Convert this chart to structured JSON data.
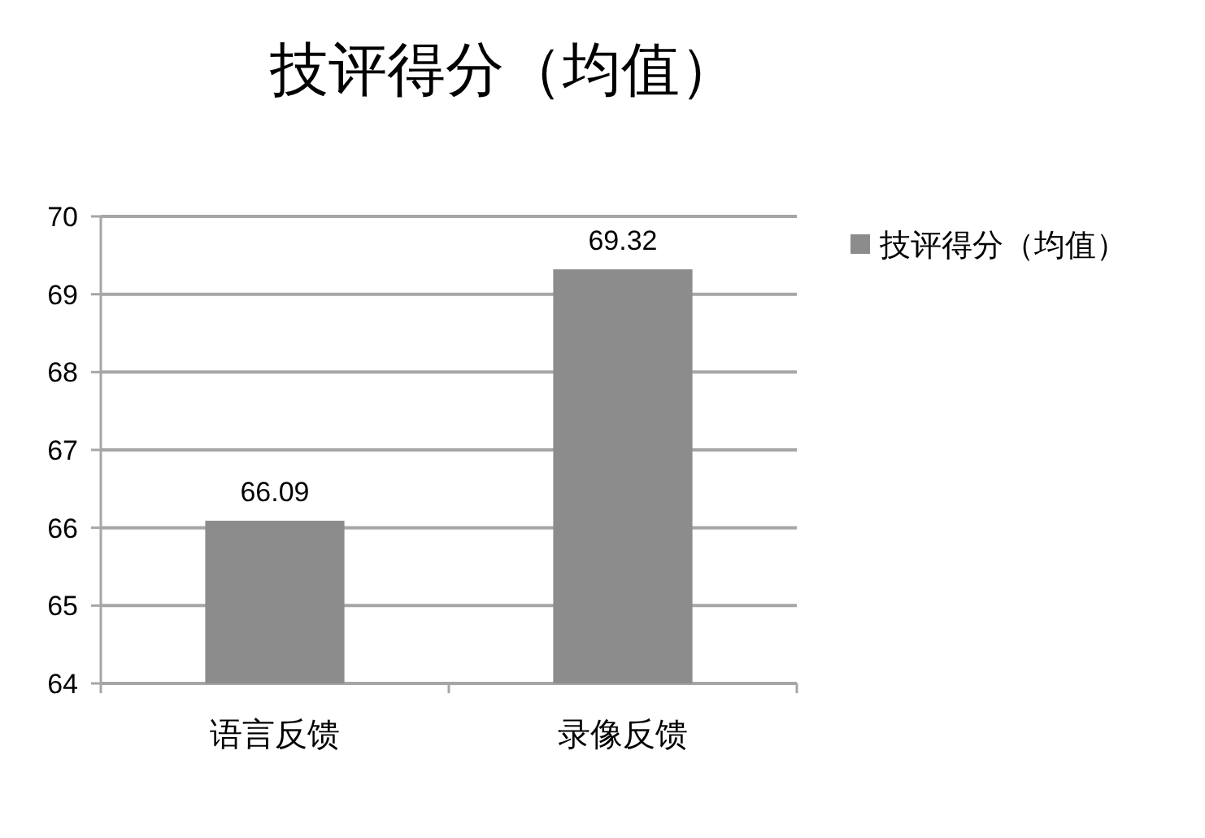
{
  "chart_data": {
    "type": "bar",
    "title": "技评得分（均值）",
    "categories": [
      "语言反馈",
      "录像反馈"
    ],
    "series": [
      {
        "name": "技评得分（均值）",
        "color": "#8c8c8c",
        "values": [
          66.09,
          69.32
        ]
      }
    ],
    "ylim": [
      64,
      70
    ],
    "yticks": [
      64,
      65,
      66,
      67,
      68,
      69,
      70
    ],
    "grid": "y",
    "legend": "top right",
    "data_labels": true
  }
}
